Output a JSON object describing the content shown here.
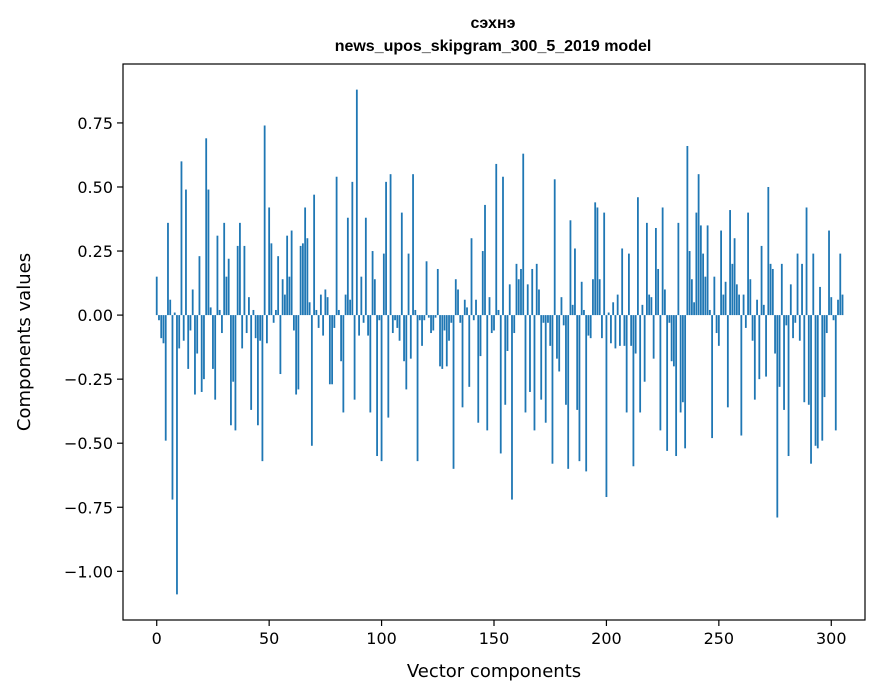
{
  "chart_data": {
    "type": "bar",
    "title": "сэхнэ",
    "subtitle": "news_upos_skipgram_300_5_2019 model",
    "xlabel": "Vector components",
    "ylabel": "Components values",
    "xlim": [
      -15,
      315
    ],
    "ylim": [
      -1.19,
      0.98
    ],
    "xticks": [
      0,
      50,
      100,
      150,
      200,
      250,
      300
    ],
    "xtick_labels": [
      "0",
      "50",
      "100",
      "150",
      "200",
      "250",
      "300"
    ],
    "yticks": [
      -1.0,
      -0.75,
      -0.5,
      -0.25,
      0.0,
      0.25,
      0.5,
      0.75
    ],
    "ytick_labels": [
      "−1.00",
      "−0.75",
      "−0.50",
      "−0.25",
      "0.00",
      "0.25",
      "0.50",
      "0.75"
    ],
    "bar_color": "#1f77b4",
    "grid": false,
    "values": [
      0.15,
      -0.02,
      -0.09,
      -0.11,
      -0.49,
      0.36,
      0.06,
      -0.72,
      0.01,
      -1.09,
      -0.13,
      0.6,
      -0.1,
      0.49,
      -0.21,
      -0.06,
      0.1,
      -0.31,
      -0.15,
      0.23,
      -0.3,
      -0.25,
      0.69,
      0.49,
      0.03,
      -0.21,
      -0.33,
      0.31,
      0.02,
      -0.07,
      0.36,
      0.15,
      0.22,
      -0.43,
      -0.26,
      -0.45,
      0.27,
      0.36,
      -0.13,
      0.27,
      -0.07,
      0.07,
      -0.37,
      0.02,
      -0.09,
      -0.43,
      -0.1,
      -0.57,
      0.74,
      -0.11,
      0.42,
      0.28,
      -0.03,
      0.02,
      0.23,
      -0.23,
      0.14,
      0.08,
      0.31,
      0.15,
      0.33,
      -0.06,
      -0.31,
      -0.29,
      0.27,
      0.28,
      0.42,
      0.3,
      0.05,
      -0.51,
      0.47,
      0.02,
      -0.05,
      0.08,
      -0.08,
      0.1,
      0.07,
      -0.27,
      -0.27,
      -0.05,
      0.54,
      0.02,
      -0.18,
      -0.38,
      0.08,
      0.38,
      0.06,
      0.52,
      -0.33,
      0.88,
      -0.08,
      0.15,
      -0.03,
      0.38,
      -0.08,
      -0.38,
      0.25,
      0.14,
      -0.55,
      -0.02,
      -0.57,
      0.24,
      0.52,
      -0.4,
      0.55,
      -0.07,
      -0.02,
      -0.05,
      -0.1,
      0.4,
      -0.18,
      -0.29,
      0.24,
      -0.17,
      0.55,
      0.02,
      -0.57,
      -0.02,
      -0.12,
      -0.02,
      0.21,
      -0.01,
      -0.07,
      -0.06,
      -0.01,
      0.18,
      -0.2,
      -0.21,
      -0.06,
      -0.2,
      -0.1,
      -0.03,
      -0.6,
      0.14,
      0.1,
      -0.03,
      -0.36,
      0.06,
      0.03,
      -0.28,
      0.3,
      -0.02,
      0.06,
      -0.42,
      -0.16,
      0.25,
      0.43,
      -0.45,
      0.07,
      -0.07,
      -0.06,
      0.59,
      0.02,
      -0.54,
      0.54,
      -0.35,
      -0.14,
      0.12,
      -0.72,
      -0.07,
      0.2,
      0.14,
      0.18,
      0.63,
      -0.38,
      0.12,
      -0.3,
      0.18,
      -0.45,
      0.2,
      0.1,
      -0.33,
      -0.03,
      -0.42,
      -0.03,
      -0.12,
      -0.58,
      0.53,
      -0.17,
      -0.22,
      0.07,
      -0.04,
      -0.35,
      -0.6,
      0.37,
      0.04,
      0.26,
      -0.37,
      -0.57,
      0.13,
      0.02,
      -0.61,
      -0.08,
      -0.09,
      0.14,
      0.44,
      0.42,
      0.14,
      -0.09,
      0.4,
      -0.71,
      0.01,
      -0.11,
      0.05,
      -0.13,
      0.08,
      -0.12,
      0.26,
      -0.12,
      -0.38,
      0.24,
      -0.12,
      -0.59,
      -0.15,
      0.46,
      -0.38,
      0.04,
      -0.26,
      0.36,
      0.08,
      0.07,
      -0.17,
      0.34,
      0.18,
      -0.45,
      0.42,
      0.1,
      -0.53,
      -0.03,
      -0.18,
      -0.2,
      -0.55,
      0.36,
      -0.38,
      -0.34,
      -0.52,
      0.66,
      0.25,
      0.14,
      0.05,
      0.4,
      0.55,
      0.35,
      0.24,
      0.15,
      0.35,
      0.02,
      -0.48,
      0.15,
      -0.07,
      -0.12,
      0.33,
      0.08,
      0.13,
      -0.36,
      0.41,
      0.2,
      0.3,
      0.12,
      0.08,
      -0.47,
      0.08,
      -0.05,
      0.4,
      0.14,
      -0.1,
      -0.33,
      0.06,
      -0.25,
      0.27,
      0.04,
      -0.24,
      0.5,
      0.2,
      0.18,
      -0.15,
      -0.79,
      -0.28,
      0.2,
      -0.37,
      -0.04,
      -0.55,
      0.12,
      -0.09,
      -0.03,
      0.24,
      -0.1,
      0.2,
      -0.34,
      0.42,
      -0.35,
      -0.58,
      0.24,
      -0.51,
      -0.52,
      0.11,
      -0.49,
      -0.32,
      -0.07,
      0.33,
      0.07,
      -0.02,
      -0.45,
      0.06,
      0.24,
      0.08
    ]
  }
}
